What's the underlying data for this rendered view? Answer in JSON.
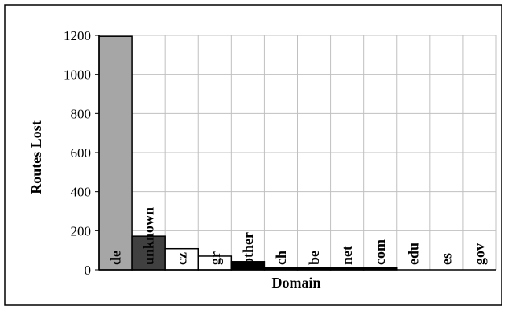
{
  "chart_data": {
    "type": "bar",
    "title": "",
    "xlabel": "Domain",
    "ylabel": "Routes Lost",
    "ylim": [
      0,
      1200
    ],
    "yticks": [
      0,
      200,
      400,
      600,
      800,
      1000,
      1200
    ],
    "yticklabels": [
      "0",
      "200",
      "400",
      "600",
      "800",
      "1000",
      "1200"
    ],
    "grid": true,
    "legend": "none",
    "categories": [
      "de",
      "unknown",
      "cz",
      "gr",
      "other",
      "ch",
      "be",
      "net",
      "com",
      "edu",
      "es",
      "gov"
    ],
    "values": [
      1195,
      172,
      108,
      70,
      42,
      12,
      10,
      10,
      10,
      0,
      0,
      0
    ],
    "bar_colors": [
      "#a6a6a6",
      "#404040",
      "#ffffff",
      "#ffffff",
      "#000000",
      "#000000",
      "#000000",
      "#000000",
      "#000000",
      "#000000",
      "#000000",
      "#000000"
    ],
    "gridline_color": "#c0c0c0",
    "frame_color": "#000000"
  }
}
